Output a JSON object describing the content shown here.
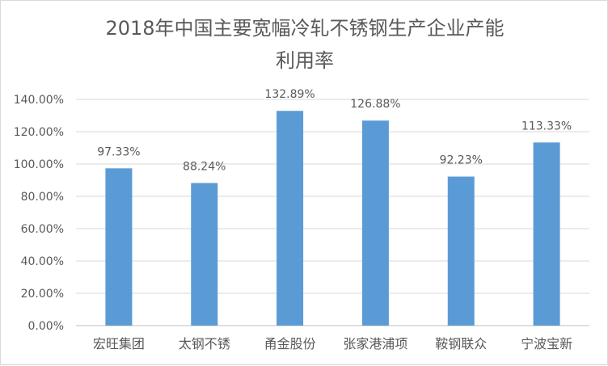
{
  "chart_data": {
    "type": "bar",
    "title_line1": "2018年中国主要宽幅冷轧不锈钢生产企业产能",
    "title_line2": "利用率",
    "categories": [
      "宏旺集团",
      "太钢不锈",
      "甬金股份",
      "张家港浦项",
      "鞍钢联众",
      "宁波宝新"
    ],
    "values": [
      97.33,
      88.24,
      132.89,
      126.88,
      92.23,
      113.33
    ],
    "data_labels": [
      "97.33%",
      "88.24%",
      "132.89%",
      "126.88%",
      "92.23%",
      "113.33%"
    ],
    "y_ticks": [
      "0.00%",
      "20.00%",
      "40.00%",
      "60.00%",
      "80.00%",
      "100.00%",
      "120.00%",
      "140.00%"
    ],
    "ylim": [
      0,
      140
    ],
    "bar_color": "#5b9bd5",
    "grid": true,
    "legend": "none"
  }
}
